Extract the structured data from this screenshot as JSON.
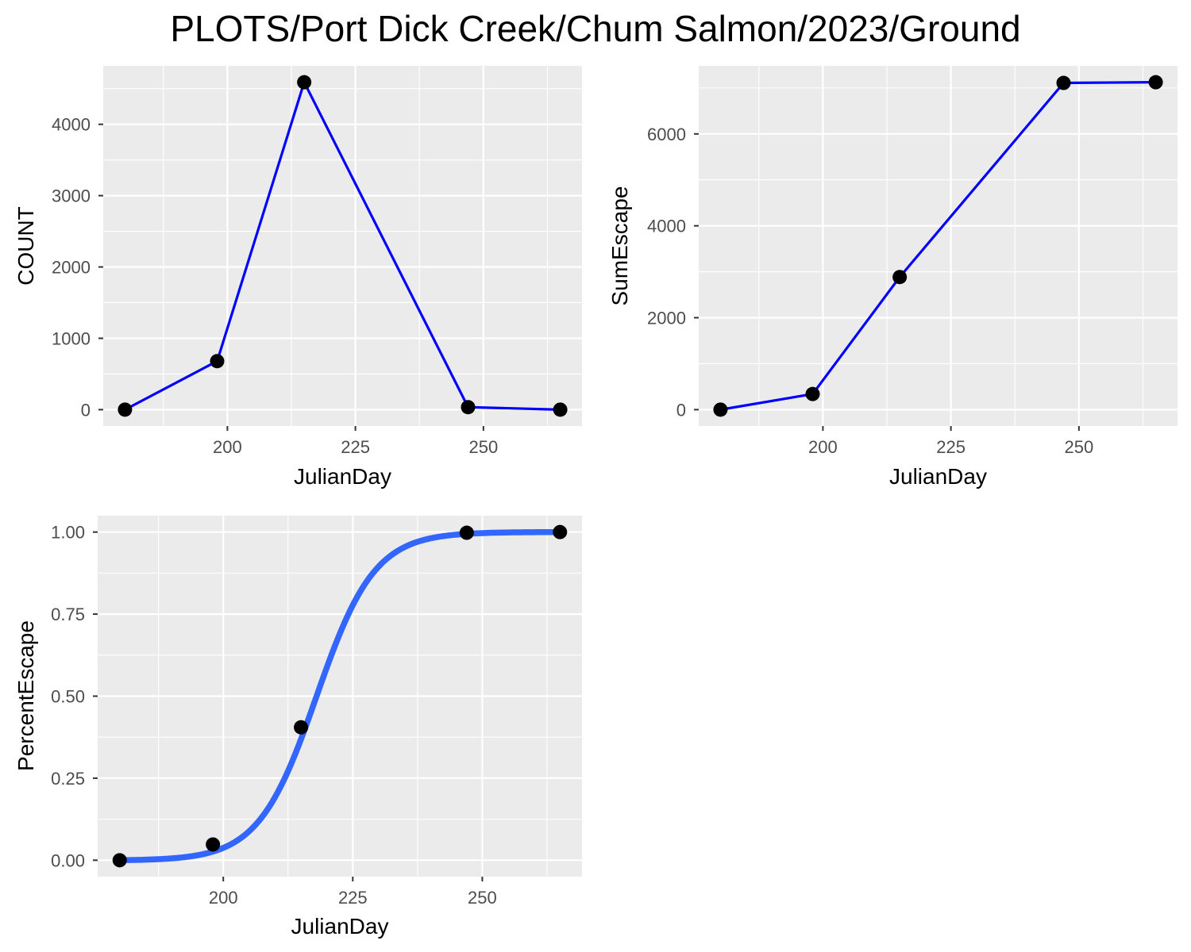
{
  "title": "PLOTS/Port Dick Creek/Chum Salmon/2023/Ground",
  "colors": {
    "panel_background": "#EBEBEB",
    "grid": "#FFFFFF",
    "line": "#0000FF",
    "smooth": "#3366FF",
    "point": "#000000",
    "tick_text": "#4D4D4D",
    "tick_mark": "#333333"
  },
  "chart_data": [
    {
      "type": "line",
      "xlabel": "JulianDay",
      "ylabel": "COUNT",
      "x": [
        180,
        198,
        215,
        247,
        265
      ],
      "y": [
        0,
        680,
        4590,
        35,
        0
      ],
      "xlim": [
        175.75,
        269.25
      ],
      "ylim": [
        -229.5,
        4819.5
      ],
      "xticks": [
        200,
        225,
        250
      ],
      "xtick_labels": [
        "200",
        "225",
        "250"
      ],
      "yticks": [
        0,
        1000,
        2000,
        3000,
        4000
      ],
      "ytick_labels": [
        "0",
        "1000",
        "2000",
        "3000",
        "4000"
      ],
      "grid": true,
      "markers": true
    },
    {
      "type": "line",
      "xlabel": "JulianDay",
      "ylabel": "SumEscape",
      "x": [
        180,
        198,
        215,
        247,
        265
      ],
      "y": [
        0,
        340,
        2885,
        7110,
        7125
      ],
      "xlim": [
        175.75,
        269.25
      ],
      "ylim": [
        -356.25,
        7481.25
      ],
      "xticks": [
        200,
        225,
        250
      ],
      "xtick_labels": [
        "200",
        "225",
        "250"
      ],
      "yticks": [
        0,
        2000,
        4000,
        6000
      ],
      "ytick_labels": [
        "0",
        "2000",
        "4000",
        "6000"
      ],
      "grid": true,
      "markers": true
    },
    {
      "type": "scatter",
      "xlabel": "JulianDay",
      "ylabel": "PercentEscape",
      "x": [
        180,
        198,
        215,
        247,
        265
      ],
      "y": [
        0.0,
        0.048,
        0.405,
        0.998,
        1.0
      ],
      "smooth_curve": {
        "description": "fitted logistic",
        "x": [
          180,
          190,
          195,
          200,
          205,
          210,
          215,
          218,
          220,
          225,
          230,
          235,
          240,
          247,
          255,
          265
        ],
        "y": [
          0.0,
          0.01,
          0.025,
          0.06,
          0.12,
          0.23,
          0.39,
          0.5,
          0.59,
          0.77,
          0.89,
          0.95,
          0.98,
          0.995,
          0.999,
          1.0
        ]
      },
      "xlim": [
        175.75,
        269.25
      ],
      "ylim": [
        -0.05,
        1.05
      ],
      "xticks": [
        200,
        225,
        250
      ],
      "xtick_labels": [
        "200",
        "225",
        "250"
      ],
      "yticks": [
        0.0,
        0.25,
        0.5,
        0.75,
        1.0
      ],
      "ytick_labels": [
        "0.00",
        "0.25",
        "0.50",
        "0.75",
        "1.00"
      ],
      "grid": true,
      "markers": true
    }
  ]
}
